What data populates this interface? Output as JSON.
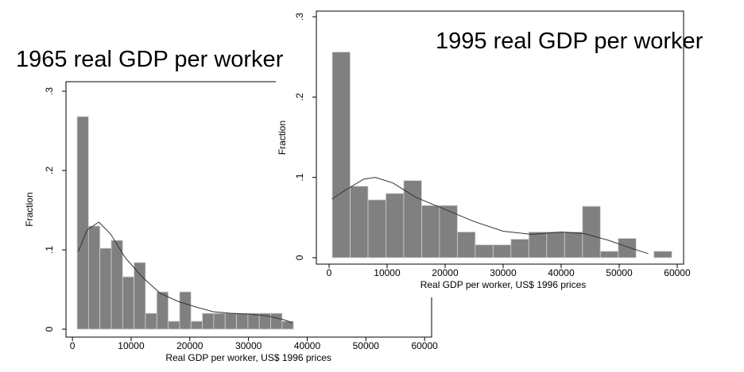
{
  "chart_data": [
    {
      "type": "histogram",
      "title": "1965 real GDP per worker",
      "xlabel": "Real GDP per worker, US$ 1996  prices",
      "ylabel": "Fraction",
      "bins": [
        800,
        2740,
        4680,
        6620,
        8560,
        10500,
        12440,
        14380,
        16320,
        18260,
        20200,
        22140,
        24080,
        26020,
        27960,
        29900,
        31840,
        33780,
        35720,
        37660
      ],
      "values": [
        0.268,
        0.13,
        0.102,
        0.112,
        0.066,
        0.084,
        0.02,
        0.047,
        0.01,
        0.047,
        0.01,
        0.02,
        0.02,
        0.02,
        0.02,
        0.02,
        0.02,
        0.02,
        0.01
      ],
      "color": "#808080",
      "line": {
        "color": "#333333",
        "x": [
          1000,
          2500,
          4500,
          6500,
          9000,
          12000,
          15000,
          18000,
          21000,
          24000,
          27000,
          30000,
          33000,
          36000,
          37500
        ],
        "values": [
          0.098,
          0.125,
          0.135,
          0.12,
          0.09,
          0.065,
          0.045,
          0.035,
          0.028,
          0.022,
          0.02,
          0.019,
          0.017,
          0.012,
          0.008
        ]
      },
      "xlim": [
        -1100,
        61200
      ],
      "ylim": [
        -0.01,
        0.312
      ],
      "xticks": [
        0,
        10000,
        20000,
        30000,
        40000,
        50000,
        60000
      ],
      "yticks": [
        0,
        {
          "value": 0.1,
          "label": ".1"
        },
        {
          "value": 0.2,
          "label": ".2"
        },
        {
          "value": 0.3,
          "label": ".3"
        }
      ]
    },
    {
      "type": "histogram",
      "title": "1995 real GDP per worker",
      "xlabel": "Real GDP per worker, US$ 1996  prices",
      "ylabel": "Fraction",
      "bins": [
        550,
        3630,
        6710,
        9790,
        12870,
        15950,
        19030,
        22110,
        25190,
        28270,
        31350,
        34430,
        37510,
        40590,
        43670,
        46750,
        49830,
        52910,
        55990,
        59070
      ],
      "values": [
        0.256,
        0.089,
        0.072,
        0.08,
        0.096,
        0.065,
        0.065,
        0.032,
        0.016,
        0.016,
        0.023,
        0.032,
        0.032,
        0.032,
        0.064,
        0.008,
        0.024,
        0,
        0.008
      ],
      "color": "#808080",
      "line": {
        "color": "#333333",
        "x": [
          500,
          3000,
          6000,
          8000,
          11000,
          15000,
          20000,
          25000,
          30000,
          35000,
          40000,
          44000,
          48000,
          52000,
          55000
        ],
        "values": [
          0.073,
          0.085,
          0.098,
          0.1,
          0.093,
          0.075,
          0.06,
          0.045,
          0.033,
          0.029,
          0.032,
          0.03,
          0.022,
          0.012,
          0.005
        ]
      },
      "xlim": [
        -2190,
        61100
      ],
      "ylim": [
        -0.008,
        0.307
      ],
      "xticks": [
        0,
        10000,
        20000,
        30000,
        40000,
        50000,
        60000
      ],
      "yticks": [
        0,
        {
          "value": 0.1,
          "label": ".1"
        },
        {
          "value": 0.2,
          "label": ".2"
        },
        {
          "value": 0.3,
          "label": ".3"
        }
      ]
    }
  ]
}
